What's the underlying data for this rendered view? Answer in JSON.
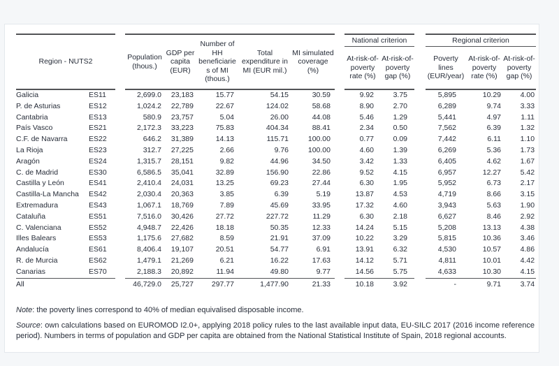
{
  "table": {
    "header": {
      "region": "Region - NUTS2",
      "population": "Population (thous.)",
      "gdp": "GDP per capita (EUR)",
      "hh_beneficiaries": "Number of HH beneficiaries of MI (thous.)",
      "expenditure": "Total expenditure in MI (EUR mil.)",
      "coverage": "MI simulated coverage (%)",
      "national_criterion": "National criterion",
      "regional_criterion": "Regional criterion",
      "nat_arop_rate": "At-risk-of-poverty rate (%)",
      "nat_arop_gap": "At-risk-of-poverty gap (%)",
      "poverty_lines": "Poverty lines (EUR/year)",
      "reg_arop_rate": "At-risk-of-poverty rate (%)",
      "reg_arop_gap": "At-risk-of-poverty gap (%)"
    },
    "columns": [
      "Population (thous.)",
      "GDP per capita (EUR)",
      "Number of HH beneficiaries of MI (thous.)",
      "Total expenditure in MI (EUR mil.)",
      "MI simulated coverage (%)",
      "National At-risk-of-poverty rate (%)",
      "National At-risk-of-poverty gap (%)",
      "Poverty lines (EUR/year)",
      "Regional At-risk-of-poverty rate (%)",
      "Regional At-risk-of-poverty gap (%)"
    ],
    "rows": [
      {
        "region": "Galicia",
        "code": "ES11",
        "values": [
          "2,699.0",
          "23,183",
          "15.77",
          "54.15",
          "30.59",
          "9.92",
          "3.75",
          "5,895",
          "10.29",
          "4.00"
        ]
      },
      {
        "region": "P. de Asturias",
        "code": "ES12",
        "values": [
          "1,024.2",
          "22,789",
          "22.67",
          "124.02",
          "58.68",
          "8.90",
          "2.70",
          "6,289",
          "9.74",
          "3.33"
        ]
      },
      {
        "region": "Cantabria",
        "code": "ES13",
        "values": [
          "580.9",
          "23,757",
          "5.04",
          "26.00",
          "44.08",
          "5.46",
          "1.29",
          "5,441",
          "4.97",
          "1.11"
        ]
      },
      {
        "region": "País Vasco",
        "code": "ES21",
        "values": [
          "2,172.3",
          "33,223",
          "75.83",
          "404.34",
          "88.41",
          "2.34",
          "0.50",
          "7,562",
          "6.39",
          "1.32"
        ]
      },
      {
        "region": "C.F. de Navarra",
        "code": "ES22",
        "values": [
          "646.2",
          "31,389",
          "14.13",
          "115.71",
          "100.00",
          "0.77",
          "0.09",
          "7,442",
          "6.11",
          "1.10"
        ]
      },
      {
        "region": "La Rioja",
        "code": "ES23",
        "values": [
          "312.7",
          "27,225",
          "2.66",
          "9.76",
          "100.00",
          "4.60",
          "1.39",
          "6,269",
          "5.36",
          "1.73"
        ]
      },
      {
        "region": "Aragón",
        "code": "ES24",
        "values": [
          "1,315.7",
          "28,151",
          "9.82",
          "44.96",
          "34.50",
          "3.42",
          "1.33",
          "6,405",
          "4.62",
          "1.67"
        ]
      },
      {
        "region": "C. de Madrid",
        "code": "ES30",
        "values": [
          "6,586.5",
          "35,041",
          "32.89",
          "156.90",
          "22.86",
          "9.52",
          "4.15",
          "6,957",
          "12.27",
          "5.42"
        ]
      },
      {
        "region": "Castilla y León",
        "code": "ES41",
        "values": [
          "2,410.4",
          "24,031",
          "13.25",
          "69.23",
          "27.44",
          "6.30",
          "1.95",
          "5,952",
          "6.73",
          "2.17"
        ]
      },
      {
        "region": "Castilla-La Mancha",
        "code": "ES42",
        "values": [
          "2,030.4",
          "20,363",
          "3.85",
          "6.39",
          "5.19",
          "13.87",
          "4.53",
          "4,719",
          "8.66",
          "3.15"
        ]
      },
      {
        "region": "Extremadura",
        "code": "ES43",
        "values": [
          "1,067.1",
          "18,769",
          "7.89",
          "45.69",
          "33.95",
          "17.32",
          "4.60",
          "3,943",
          "5.63",
          "1.90"
        ]
      },
      {
        "region": "Cataluña",
        "code": "ES51",
        "values": [
          "7,516.0",
          "30,426",
          "27.72",
          "227.72",
          "11.29",
          "6.30",
          "2.18",
          "6,627",
          "8.46",
          "2.92"
        ]
      },
      {
        "region": "C. Valenciana",
        "code": "ES52",
        "values": [
          "4,948.7",
          "22,426",
          "18.18",
          "50.35",
          "12.33",
          "14.24",
          "5.15",
          "5,208",
          "13.13",
          "4.38"
        ]
      },
      {
        "region": "Illes Balears",
        "code": "ES53",
        "values": [
          "1,175.6",
          "27,682",
          "8.59",
          "21.91",
          "37.09",
          "10.22",
          "3.29",
          "5,815",
          "10.36",
          "3.46"
        ]
      },
      {
        "region": "Andalucía",
        "code": "ES61",
        "values": [
          "8,406.4",
          "19,107",
          "20.51",
          "54.77",
          "6.91",
          "13.91",
          "6.32",
          "4,530",
          "10.57",
          "4.86"
        ]
      },
      {
        "region": "R. de Murcia",
        "code": "ES62",
        "values": [
          "1,479.1",
          "21,269",
          "6.21",
          "16.22",
          "17.63",
          "14.12",
          "5.71",
          "4,811",
          "10.01",
          "4.42"
        ]
      },
      {
        "region": "Canarias",
        "code": "ES70",
        "values": [
          "2,188.3",
          "20,892",
          "11.94",
          "49.80",
          "9.77",
          "14.56",
          "5.75",
          "4,633",
          "10.30",
          "4.15"
        ]
      }
    ],
    "total_row": {
      "region": "All",
      "code": "",
      "values": [
        "46,729.0",
        "25,727",
        "297.77",
        "1,477.90",
        "21.33",
        "10.18",
        "3.92",
        "-",
        "9.71",
        "3.74"
      ]
    }
  },
  "notes": {
    "note_label": "Note",
    "note_text": ": the poverty lines correspond to 40% of median equivalised disposable income.",
    "source_label": "Source",
    "source_text": ": own calculations based on EUROMOD I2.0+, applying 2018 policy rules to the last available input data, EU-SILC 2017 (2016 income reference period). Numbers in terms of population and GDP per capita are obtained from the National Statistical Institute of Spain, 2018 regional accounts."
  }
}
